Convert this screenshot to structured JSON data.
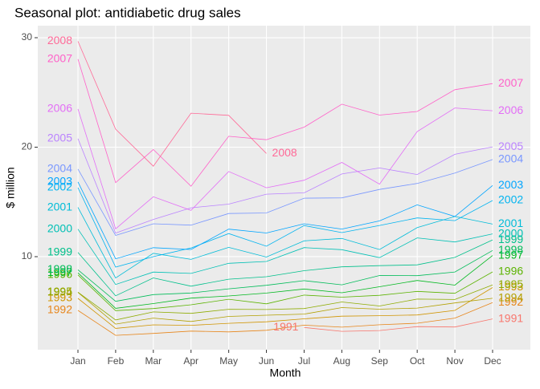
{
  "chart_data": {
    "type": "line",
    "title": "Seasonal plot: antidiabetic drug sales",
    "x_label": "Month",
    "y_label": "$ million",
    "categories": [
      "Jan",
      "Feb",
      "Mar",
      "Apr",
      "May",
      "Jun",
      "Jul",
      "Aug",
      "Sep",
      "Oct",
      "Nov",
      "Dec"
    ],
    "ylim": [
      1.5,
      31.1
    ],
    "yticks": [
      10,
      20,
      30
    ],
    "grid": true,
    "series": [
      {
        "name": "1991",
        "color": "#F8766D",
        "values": [
          null,
          null,
          null,
          null,
          null,
          null,
          3.53,
          3.18,
          3.25,
          3.61,
          3.57,
          4.31
        ]
      },
      {
        "name": "1992",
        "color": "#E7861B",
        "values": [
          5.09,
          2.81,
          2.99,
          3.2,
          3.13,
          3.27,
          3.74,
          3.56,
          3.78,
          3.92,
          4.39,
          5.81
        ]
      },
      {
        "name": "1993",
        "color": "#D09400",
        "values": [
          6.19,
          3.45,
          3.77,
          3.73,
          3.91,
          4.05,
          4.32,
          4.56,
          4.61,
          4.67,
          5.09,
          7.18
        ]
      },
      {
        "name": "1994",
        "color": "#B2A000",
        "values": [
          6.73,
          3.84,
          4.39,
          4.08,
          4.54,
          4.65,
          4.75,
          5.35,
          5.2,
          5.3,
          5.77,
          6.2
        ]
      },
      {
        "name": "1995",
        "color": "#8EAB00",
        "values": [
          6.75,
          4.22,
          4.95,
          4.82,
          5.19,
          5.17,
          5.26,
          5.86,
          5.49,
          6.12,
          6.09,
          7.42
        ]
      },
      {
        "name": "1996",
        "color": "#5BB300",
        "values": [
          8.33,
          5.07,
          5.26,
          5.6,
          6.11,
          5.69,
          6.49,
          6.3,
          6.47,
          6.83,
          6.65,
          8.61
        ]
      },
      {
        "name": "1997",
        "color": "#00B81F",
        "values": [
          8.52,
          5.28,
          5.71,
          6.21,
          6.41,
          6.67,
          7.05,
          6.7,
          7.25,
          7.82,
          7.4,
          10.1
        ]
      },
      {
        "name": "1998",
        "color": "#00BC59",
        "values": [
          8.8,
          5.92,
          6.53,
          6.68,
          7.06,
          7.38,
          7.81,
          7.43,
          8.28,
          8.26,
          8.6,
          10.56
        ]
      },
      {
        "name": "1999",
        "color": "#00C08B",
        "values": [
          10.39,
          6.42,
          8.06,
          7.3,
          7.94,
          8.17,
          8.72,
          9.07,
          9.18,
          9.25,
          9.93,
          11.53
        ]
      },
      {
        "name": "2000",
        "color": "#00C0B5",
        "values": [
          12.51,
          7.46,
          8.59,
          8.47,
          9.39,
          9.56,
          10.83,
          10.64,
          9.91,
          11.71,
          11.34,
          12.08
        ]
      },
      {
        "name": "2001",
        "color": "#00BCD8",
        "values": [
          14.5,
          8.05,
          10.31,
          9.75,
          10.85,
          9.96,
          11.44,
          11.66,
          10.65,
          12.65,
          13.67,
          12.97
        ]
      },
      {
        "name": "2002",
        "color": "#00B4F0",
        "values": [
          16.3,
          9.05,
          10.0,
          10.79,
          12.11,
          10.95,
          12.84,
          12.2,
          12.85,
          13.54,
          13.29,
          15.13
        ]
      },
      {
        "name": "2003",
        "color": "#00A5FF",
        "values": [
          16.83,
          9.8,
          10.82,
          10.65,
          12.51,
          12.16,
          13.0,
          12.52,
          13.27,
          14.73,
          13.67,
          16.5
        ]
      },
      {
        "name": "2004",
        "color": "#7997FF",
        "values": [
          18.0,
          11.94,
          13.0,
          12.88,
          13.94,
          13.99,
          15.34,
          15.37,
          16.14,
          16.69,
          17.64,
          18.87
        ]
      },
      {
        "name": "2005",
        "color": "#BB83FF",
        "values": [
          20.78,
          12.15,
          13.4,
          14.46,
          14.8,
          15.71,
          15.83,
          17.55,
          18.1,
          17.5,
          19.35,
          20.03
        ]
      },
      {
        "name": "2006",
        "color": "#E36EF6",
        "values": [
          23.49,
          12.54,
          15.47,
          14.23,
          17.78,
          16.29,
          16.98,
          18.61,
          16.62,
          21.43,
          23.58,
          23.33
        ]
      },
      {
        "name": "2007",
        "color": "#FF61C9",
        "values": [
          28.04,
          16.76,
          19.79,
          16.43,
          21.0,
          20.68,
          21.83,
          23.93,
          22.93,
          23.26,
          25.25,
          25.81
        ]
      },
      {
        "name": "2008",
        "color": "#FF6A98",
        "values": [
          29.67,
          21.65,
          18.26,
          23.11,
          22.91,
          19.43,
          null,
          null,
          null,
          null,
          null,
          null
        ]
      }
    ]
  }
}
